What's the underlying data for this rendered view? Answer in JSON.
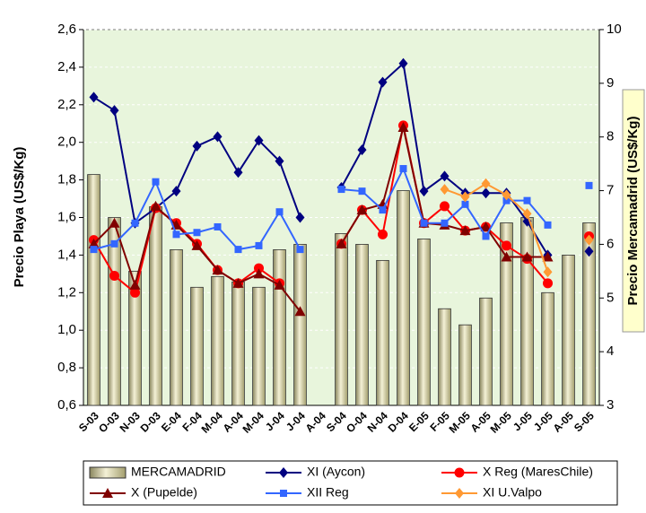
{
  "chart_data": {
    "type": "combo",
    "y_label": "Precio Playa (US$/Kg)",
    "y2_label": "Precio Mercamadrid (US$/Kg)",
    "categories": [
      "S-03",
      "O-03",
      "N-03",
      "D-03",
      "E-04",
      "F-04",
      "M-04",
      "A-04",
      "M-04",
      "J-04",
      "J-04",
      "A-04",
      "S-04",
      "O-04",
      "N-04",
      "D-04",
      "E-05",
      "F-05",
      "M-05",
      "A-05",
      "M-05",
      "J-05",
      "J-05",
      "A-05",
      "S-05"
    ],
    "ylim": [
      0.6,
      2.6
    ],
    "yticks": [
      {
        "value": 0.6,
        "label": "0,6"
      },
      {
        "value": 0.8,
        "label": "0,8"
      },
      {
        "value": 1.0,
        "label": "1,0"
      },
      {
        "value": 1.2,
        "label": "1,2"
      },
      {
        "value": 1.4,
        "label": "1,4"
      },
      {
        "value": 1.6,
        "label": "1,6"
      },
      {
        "value": 1.8,
        "label": "1,8"
      },
      {
        "value": 2.0,
        "label": "2,0"
      },
      {
        "value": 2.2,
        "label": "2,2"
      },
      {
        "value": 2.4,
        "label": "2,4"
      },
      {
        "value": 2.6,
        "label": "2,6"
      }
    ],
    "y2lim": [
      3,
      10
    ],
    "y2ticks": [
      3,
      4,
      5,
      6,
      7,
      8,
      9,
      10
    ],
    "grid": true,
    "series": [
      {
        "name": "MERCAMADRID",
        "type": "bar",
        "axis": "y2",
        "color": "#d9d4a6",
        "values": [
          7.3,
          6.5,
          5.5,
          6.7,
          5.9,
          5.2,
          5.4,
          5.3,
          5.2,
          5.9,
          6.0,
          null,
          6.2,
          6.0,
          5.7,
          7.0,
          6.1,
          4.8,
          4.5,
          5.0,
          6.4,
          6.5,
          5.1,
          5.8,
          6.4
        ]
      },
      {
        "name": "XI (Aycon)",
        "type": "line",
        "color": "#000080",
        "marker": "diamond",
        "values": [
          2.24,
          2.17,
          1.57,
          1.65,
          1.74,
          1.98,
          2.03,
          1.84,
          2.01,
          1.9,
          1.6,
          null,
          1.76,
          1.96,
          2.32,
          2.42,
          1.74,
          1.82,
          1.73,
          1.73,
          1.73,
          1.58,
          1.4,
          null,
          1.42
        ]
      },
      {
        "name": "X Reg (MaresChile)",
        "type": "line",
        "color": "#ff0000",
        "marker": "circle",
        "values": [
          1.48,
          1.29,
          1.2,
          1.65,
          1.57,
          1.46,
          1.32,
          1.25,
          1.33,
          1.25,
          null,
          null,
          1.46,
          1.64,
          1.51,
          2.09,
          1.57,
          1.66,
          1.53,
          1.55,
          1.45,
          1.38,
          1.25,
          null,
          1.5
        ]
      },
      {
        "name": "X  (Pupelde)",
        "type": "line",
        "color": "#800000",
        "marker": "triangle",
        "values": [
          1.46,
          1.57,
          1.24,
          1.66,
          1.56,
          1.45,
          1.32,
          1.25,
          1.3,
          1.24,
          1.1,
          null,
          1.46,
          1.64,
          1.67,
          2.08,
          1.57,
          1.56,
          1.53,
          1.55,
          1.39,
          1.39,
          1.39,
          null,
          null
        ]
      },
      {
        "name": "XII Reg",
        "type": "line",
        "color": "#3366ff",
        "marker": "square",
        "values": [
          1.43,
          1.46,
          1.57,
          1.79,
          1.51,
          1.52,
          1.55,
          1.43,
          1.45,
          1.63,
          1.43,
          null,
          1.75,
          1.74,
          1.64,
          1.86,
          1.57,
          1.57,
          1.67,
          1.5,
          1.69,
          1.69,
          1.56,
          null,
          1.77
        ]
      },
      {
        "name": "XI U.Valpo",
        "type": "line",
        "color": "#ff9933",
        "marker": "diamond",
        "values": [
          null,
          null,
          null,
          null,
          null,
          null,
          null,
          null,
          null,
          null,
          null,
          null,
          null,
          null,
          null,
          null,
          null,
          1.75,
          1.71,
          1.78,
          1.72,
          1.62,
          1.31,
          null,
          1.48
        ]
      }
    ]
  }
}
